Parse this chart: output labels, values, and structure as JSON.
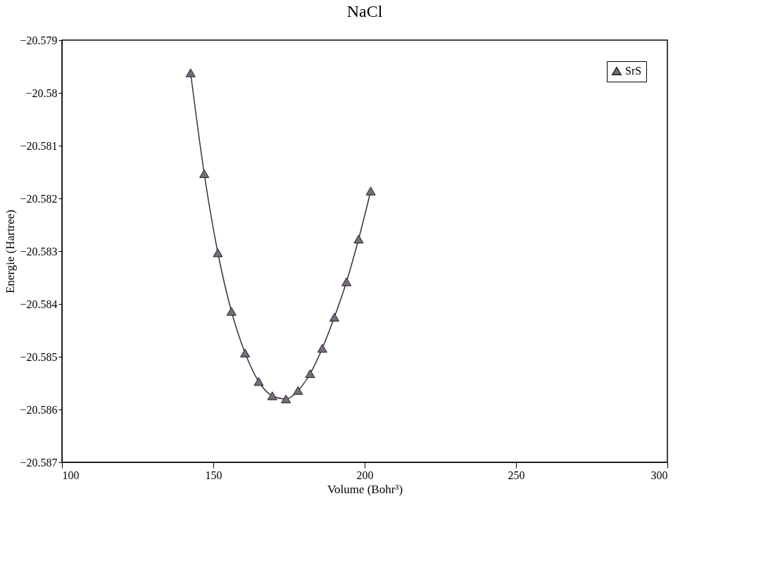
{
  "chart_data": {
    "type": "line",
    "title": "NaCl",
    "xlabel": "Volume (Bohr³)",
    "ylabel": "Energie (Hartree)",
    "x": [
      142.5,
      147,
      151.5,
      156,
      160.5,
      165,
      169.5,
      174,
      178,
      182,
      186,
      190,
      194,
      198,
      202
    ],
    "series": [
      {
        "name": "SrS",
        "color": "#7a6a80",
        "values": [
          -20.57962,
          -20.58153,
          -20.58303,
          -20.58414,
          -20.58493,
          -20.58547,
          -20.58574,
          -20.5858,
          -20.58564,
          -20.58532,
          -20.58484,
          -20.58425,
          -20.58358,
          -20.58277,
          -20.58186
        ]
      }
    ],
    "xlim": [
      100,
      300
    ],
    "xticks": [
      100,
      150,
      200,
      250,
      300
    ],
    "ylim": [
      -20.587,
      -20.579
    ],
    "yticks": [
      -20.587,
      -20.586,
      -20.585,
      -20.584,
      -20.583,
      -20.582,
      -20.581,
      -20.58,
      -20.579
    ],
    "grid": false,
    "legend": "top right",
    "marker": "triangle",
    "line_style": "solid"
  }
}
